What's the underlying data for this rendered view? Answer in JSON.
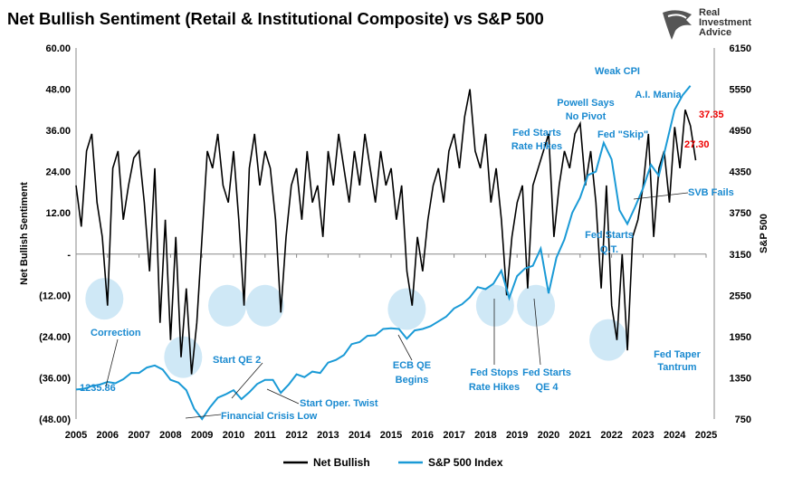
{
  "chart_data": {
    "type": "line",
    "title": "Net Bullish Sentiment (Retail & Institutional Composite) vs S&P 500",
    "ylabel": "Net Bullish Sentiment",
    "y2label": "S&P 500",
    "ylim": [
      -48,
      60
    ],
    "y2lim": [
      750,
      6150
    ],
    "xlim": [
      2005,
      2025
    ],
    "x_ticks": [
      "2005",
      "2006",
      "2007",
      "2008",
      "2009",
      "2010",
      "2011",
      "2012",
      "2013",
      "2014",
      "2015",
      "2016",
      "2017",
      "2018",
      "2019",
      "2020",
      "2021",
      "2022",
      "2023",
      "2024",
      "2025"
    ],
    "y_ticks": [
      "(48.00)",
      "(36.00)",
      "(24.00)",
      "(12.00)",
      "-",
      "12.00",
      "24.00",
      "36.00",
      "48.00",
      "60.00"
    ],
    "y2_ticks": [
      "750",
      "1350",
      "1950",
      "2550",
      "3150",
      "3750",
      "4350",
      "4950",
      "5550",
      "6150"
    ],
    "grid": false,
    "legend": "bottom",
    "series": [
      {
        "name": "Net Bullish",
        "axis": "left",
        "color": "#000000",
        "x_start": 2005,
        "x_step": 0.1667,
        "values": [
          20,
          8,
          30,
          35,
          15,
          5,
          -15,
          25,
          30,
          10,
          20,
          28,
          30,
          15,
          -5,
          25,
          -20,
          10,
          -25,
          5,
          -30,
          -10,
          -35,
          -20,
          5,
          30,
          25,
          35,
          20,
          15,
          30,
          10,
          -15,
          25,
          35,
          20,
          30,
          25,
          10,
          -17,
          5,
          20,
          25,
          10,
          30,
          15,
          20,
          5,
          30,
          20,
          35,
          25,
          15,
          30,
          20,
          35,
          25,
          15,
          30,
          20,
          25,
          10,
          20,
          -5,
          -15,
          5,
          -5,
          10,
          20,
          25,
          15,
          30,
          35,
          25,
          40,
          48,
          30,
          25,
          35,
          15,
          25,
          10,
          -12,
          5,
          15,
          20,
          -10,
          20,
          25,
          30,
          35,
          5,
          20,
          30,
          25,
          35,
          38,
          20,
          30,
          15,
          -10,
          20,
          -15,
          -25,
          0,
          -28,
          5,
          10,
          20,
          35,
          5,
          25,
          30,
          15,
          37,
          25,
          42,
          37.35,
          27.3
        ]
      },
      {
        "name": "S&P 500 Index",
        "axis": "right",
        "color": "#1a9ad6",
        "x_start": 2005,
        "x_step": 0.25,
        "values": [
          1180,
          1190,
          1230,
          1250,
          1290,
          1270,
          1330,
          1420,
          1420,
          1500,
          1530,
          1470,
          1320,
          1280,
          1170,
          900,
          750,
          920,
          1060,
          1110,
          1170,
          1040,
          1140,
          1260,
          1320,
          1320,
          1130,
          1250,
          1400,
          1360,
          1440,
          1420,
          1570,
          1610,
          1680,
          1840,
          1870,
          1960,
          1970,
          2060,
          2070,
          2060,
          1920,
          2040,
          2060,
          2100,
          2170,
          2240,
          2360,
          2420,
          2520,
          2670,
          2640,
          2720,
          2910,
          2510,
          2830,
          2940,
          2980,
          3230,
          2580,
          3100,
          3360,
          3750,
          3970,
          4300,
          4350,
          4770,
          4530,
          3790,
          3590,
          3840,
          4110,
          4450,
          4290,
          4770,
          5250,
          5460,
          5600
        ]
      }
    ],
    "highlight_circles": [
      [
        2005.9,
        -13
      ],
      [
        2008.4,
        -30
      ],
      [
        2009.8,
        -15
      ],
      [
        2011.0,
        -15
      ],
      [
        2015.5,
        -16
      ],
      [
        2018.3,
        -15
      ],
      [
        2019.6,
        -15
      ],
      [
        2021.9,
        -25
      ]
    ],
    "data_labels": {
      "last_high": "37.35",
      "last": "27.30",
      "start": "1235.86"
    },
    "annotations": [
      "Correction",
      "Start QE 2",
      "Financial Crisis Low",
      "Start Oper. Twist",
      "ECB QE Begins",
      "Fed Stops Rate Hikes",
      "Fed Starts QE 4",
      "Fed Taper Tantrum",
      "Fed Starts Rate Hikes",
      "Powell Says No Pivot",
      "Weak CPI",
      "Fed \"Skip\"",
      "A.I. Mania",
      "SVB Fails",
      "Fed Starts Q.T."
    ]
  },
  "logo": {
    "line1": "Real",
    "line2": "Investment",
    "line3": "Advice"
  }
}
